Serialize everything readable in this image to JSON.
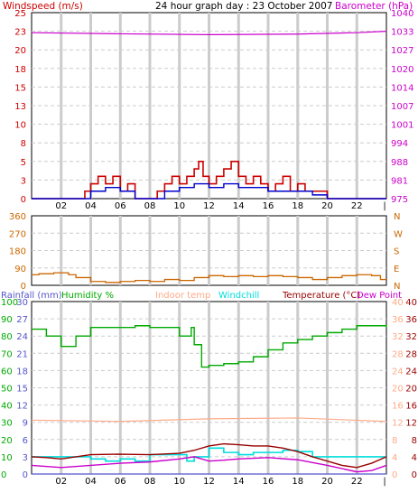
{
  "title": "24 hour graph day : 23 October 2007",
  "colors": {
    "windspeed": "#cc0000",
    "wind_avg": "#0000cc",
    "barometer": "#cc00cc",
    "direction": "#cc6600",
    "rainfall": "#5555cc",
    "humidity": "#00aa00",
    "indoor": "#ffaa88",
    "windchill": "#00dddd",
    "temperature": "#990000",
    "dewpoint": "#cc00cc",
    "grid": "#cccccc",
    "frame": "#000000"
  },
  "time_ticks": [
    "02",
    "04",
    "06",
    "08",
    "10",
    "12",
    "14",
    "16",
    "18",
    "20",
    "22"
  ],
  "end_tick": "|",
  "chart_data": [
    {
      "type": "line",
      "name": "wind-barometer",
      "left_axis_label": "Windspeed (m/s)",
      "right_axis_label": "Barometer (hPa)",
      "left_ticks": [
        "25",
        "23",
        "20",
        "18",
        "15",
        "13",
        "10",
        "8",
        "5",
        "3",
        "0"
      ],
      "right_ticks": [
        "1040",
        "1033",
        "1027",
        "1020",
        "1014",
        "1007",
        "1001",
        "994",
        "988",
        "981",
        "975"
      ],
      "ylim_left": [
        0,
        25
      ],
      "ylim_right": [
        975,
        1040
      ],
      "x_range_hours": [
        0,
        24
      ],
      "series": {
        "wind_gust": [
          [
            0,
            0
          ],
          [
            3,
            0
          ],
          [
            3.6,
            1
          ],
          [
            4,
            2
          ],
          [
            4.5,
            3
          ],
          [
            5,
            2
          ],
          [
            5.5,
            3
          ],
          [
            6,
            1
          ],
          [
            6.5,
            2
          ],
          [
            7,
            0
          ],
          [
            8,
            0
          ],
          [
            8.5,
            1
          ],
          [
            9,
            2
          ],
          [
            9.5,
            3
          ],
          [
            10,
            2
          ],
          [
            10.5,
            3
          ],
          [
            11,
            4
          ],
          [
            11.3,
            5
          ],
          [
            11.6,
            3
          ],
          [
            12,
            2
          ],
          [
            12.5,
            3
          ],
          [
            13,
            4
          ],
          [
            13.5,
            5
          ],
          [
            14,
            3
          ],
          [
            14.5,
            2
          ],
          [
            15,
            3
          ],
          [
            15.5,
            2
          ],
          [
            16,
            1
          ],
          [
            16.5,
            2
          ],
          [
            17,
            3
          ],
          [
            17.5,
            1
          ],
          [
            18,
            2
          ],
          [
            18.5,
            1
          ],
          [
            19,
            1
          ],
          [
            20,
            0
          ],
          [
            24,
            0
          ]
        ],
        "wind_avg": [
          [
            0,
            0
          ],
          [
            3,
            0
          ],
          [
            4,
            1
          ],
          [
            5,
            1.5
          ],
          [
            6,
            1
          ],
          [
            7,
            0
          ],
          [
            8,
            0
          ],
          [
            9,
            1
          ],
          [
            10,
            1.5
          ],
          [
            11,
            2
          ],
          [
            12,
            1.5
          ],
          [
            13,
            2
          ],
          [
            14,
            1.5
          ],
          [
            15,
            1.5
          ],
          [
            16,
            1
          ],
          [
            17,
            1
          ],
          [
            18,
            1
          ],
          [
            19,
            0.5
          ],
          [
            20,
            0
          ],
          [
            24,
            0
          ]
        ],
        "barometer": [
          [
            0,
            1033
          ],
          [
            6,
            1032.6
          ],
          [
            12,
            1032.3
          ],
          [
            18,
            1032.5
          ],
          [
            22,
            1033
          ],
          [
            24,
            1033.5
          ]
        ]
      }
    },
    {
      "type": "line",
      "name": "wind-direction",
      "left_ticks": [
        "360",
        "270",
        "180",
        "90",
        "0"
      ],
      "right_ticks": [
        "N",
        "W",
        "S",
        "E",
        "N"
      ],
      "ylim": [
        0,
        360
      ],
      "series": {
        "direction": [
          [
            0,
            55
          ],
          [
            0.5,
            60
          ],
          [
            1.5,
            65
          ],
          [
            2.5,
            55
          ],
          [
            3,
            40
          ],
          [
            4,
            20
          ],
          [
            5,
            15
          ],
          [
            6,
            20
          ],
          [
            7,
            25
          ],
          [
            8,
            20
          ],
          [
            9,
            30
          ],
          [
            10,
            25
          ],
          [
            11,
            40
          ],
          [
            12,
            50
          ],
          [
            13,
            45
          ],
          [
            14,
            50
          ],
          [
            15,
            45
          ],
          [
            16,
            50
          ],
          [
            17,
            45
          ],
          [
            18,
            40
          ],
          [
            19,
            30
          ],
          [
            20,
            40
          ],
          [
            21,
            50
          ],
          [
            22,
            55
          ],
          [
            23,
            50
          ],
          [
            23.6,
            30
          ],
          [
            24,
            30
          ]
        ]
      }
    },
    {
      "type": "line",
      "name": "temperature-humidity",
      "legend": [
        "Rainfall (mm)",
        "Humidity %",
        "Indoor temp",
        "Windchill",
        "Temperature (°C)",
        "Dew Point"
      ],
      "axis_rain": [
        "30",
        "27",
        "24",
        "21",
        "18",
        "15",
        "12",
        "9",
        "6",
        "3",
        "0"
      ],
      "axis_humidity": [
        "100",
        "90",
        "80",
        "70",
        "60",
        "50",
        "40",
        "30",
        "20",
        "10",
        "0"
      ],
      "axis_indoor": [
        "40",
        "36",
        "32",
        "28",
        "24",
        "20",
        "16",
        "12",
        "8",
        "4",
        "0"
      ],
      "axis_temp": [
        "40",
        "36",
        "32",
        "28",
        "24",
        "20",
        "16",
        "12",
        "8",
        "4",
        "0"
      ],
      "ylim_humidity": [
        0,
        100
      ],
      "ylim_temp": [
        0,
        40
      ],
      "series": {
        "humidity": [
          [
            0,
            84
          ],
          [
            1,
            80
          ],
          [
            2,
            74
          ],
          [
            3,
            80
          ],
          [
            4,
            85
          ],
          [
            5,
            85
          ],
          [
            6,
            85
          ],
          [
            7,
            86
          ],
          [
            8,
            85
          ],
          [
            9,
            85
          ],
          [
            10,
            80
          ],
          [
            10.8,
            85
          ],
          [
            11,
            75
          ],
          [
            11.5,
            62
          ],
          [
            12,
            63
          ],
          [
            13,
            64
          ],
          [
            14,
            65
          ],
          [
            15,
            68
          ],
          [
            16,
            72
          ],
          [
            17,
            76
          ],
          [
            18,
            78
          ],
          [
            19,
            80
          ],
          [
            20,
            82
          ],
          [
            21,
            84
          ],
          [
            22,
            86
          ],
          [
            23,
            86
          ],
          [
            24,
            85
          ]
        ],
        "indoor": [
          [
            0,
            12.5
          ],
          [
            6,
            12.2
          ],
          [
            12,
            12.8
          ],
          [
            18,
            13
          ],
          [
            24,
            12.2
          ]
        ],
        "temperature": [
          [
            0,
            4
          ],
          [
            1,
            3.8
          ],
          [
            2,
            3.5
          ],
          [
            3,
            4
          ],
          [
            4,
            4.5
          ],
          [
            6,
            4.6
          ],
          [
            8,
            4.5
          ],
          [
            10,
            4.8
          ],
          [
            11,
            5.5
          ],
          [
            12,
            6.5
          ],
          [
            13,
            7
          ],
          [
            14,
            6.8
          ],
          [
            15,
            6.5
          ],
          [
            16,
            6.5
          ],
          [
            17,
            6
          ],
          [
            18,
            5.2
          ],
          [
            19,
            4
          ],
          [
            20,
            3
          ],
          [
            21,
            2
          ],
          [
            22,
            1.5
          ],
          [
            23,
            2.5
          ],
          [
            24,
            4
          ]
        ],
        "windchill": [
          [
            0,
            4
          ],
          [
            3,
            4
          ],
          [
            4,
            3.5
          ],
          [
            5,
            3
          ],
          [
            6,
            3.5
          ],
          [
            7,
            3
          ],
          [
            8,
            4.5
          ],
          [
            10,
            4.5
          ],
          [
            10.5,
            3
          ],
          [
            11,
            4
          ],
          [
            12,
            6
          ],
          [
            13,
            5
          ],
          [
            14,
            4.5
          ],
          [
            15,
            5
          ],
          [
            16,
            5
          ],
          [
            17,
            5.5
          ],
          [
            18,
            5.2
          ],
          [
            19,
            4
          ],
          [
            24,
            4
          ]
        ],
        "dewpoint": [
          [
            0,
            2
          ],
          [
            2,
            1.5
          ],
          [
            4,
            2
          ],
          [
            6,
            2.5
          ],
          [
            8,
            2.8
          ],
          [
            10,
            3.5
          ],
          [
            11,
            4
          ],
          [
            12,
            3
          ],
          [
            13,
            3.2
          ],
          [
            14,
            3.5
          ],
          [
            16,
            3.8
          ],
          [
            18,
            3.3
          ],
          [
            20,
            2
          ],
          [
            22,
            0.5
          ],
          [
            23,
            0.8
          ],
          [
            24,
            2
          ]
        ],
        "rainfall": [
          [
            0,
            0
          ],
          [
            24,
            0
          ]
        ]
      }
    }
  ]
}
